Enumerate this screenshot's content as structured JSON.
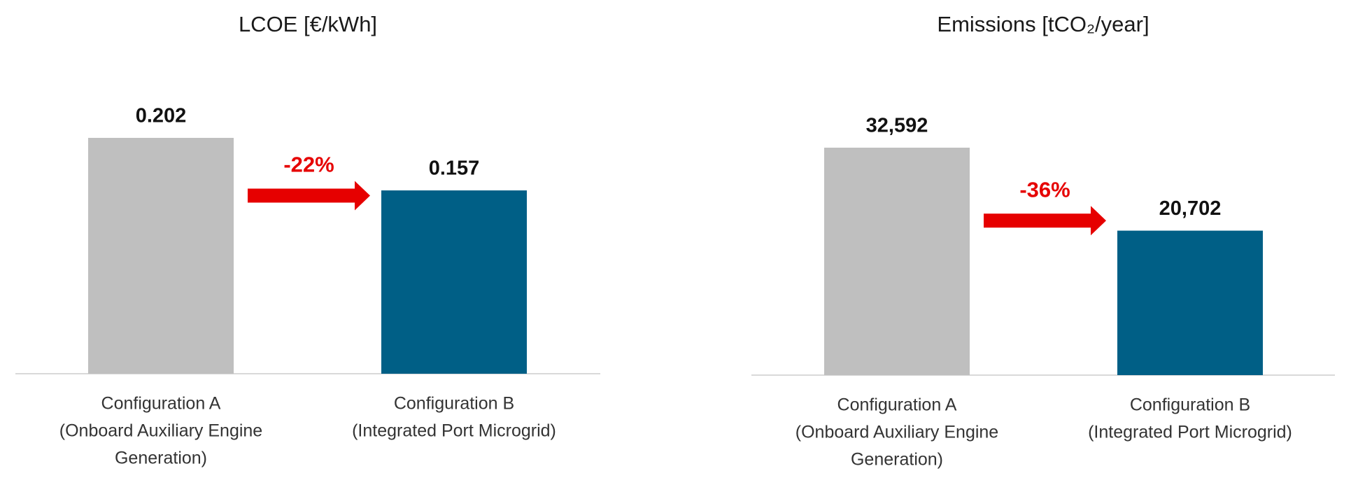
{
  "chart_data": [
    {
      "type": "bar",
      "title": "LCOE [€/kWh]",
      "categories": [
        [
          "Configuration A",
          "(Onboard Auxiliary Engine",
          "Generation)"
        ],
        [
          "Configuration B",
          "(Integrated Port Microgrid)"
        ]
      ],
      "values": [
        0.202,
        0.157
      ],
      "colors": [
        "#bfbfbf",
        "#005f86"
      ],
      "annotation": "-22%",
      "annotation_color": "#e60000"
    },
    {
      "type": "bar",
      "title": "Emissions [tCO₂/year]",
      "categories": [
        [
          "Configuration A",
          "(Onboard Auxiliary Engine",
          "Generation)"
        ],
        [
          "Configuration B",
          "(Integrated Port Microgrid)"
        ]
      ],
      "values": [
        32592,
        20702
      ],
      "value_labels": [
        "32,592",
        "20,702"
      ],
      "colors": [
        "#bfbfbf",
        "#005f86"
      ],
      "annotation": "-36%",
      "annotation_color": "#e60000"
    }
  ]
}
